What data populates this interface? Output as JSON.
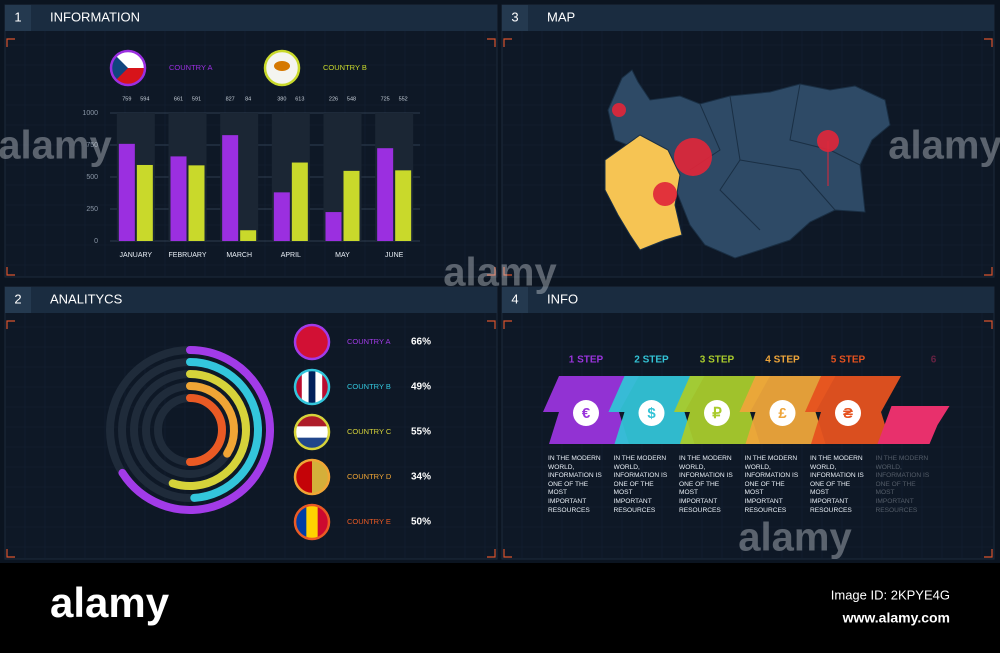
{
  "panels": [
    {
      "number": "1",
      "title": "INFORMATION"
    },
    {
      "number": "3",
      "title": "MAP"
    },
    {
      "number": "2",
      "title": "ANALITYCS"
    },
    {
      "number": "4",
      "title": "INFO"
    }
  ],
  "chart_data": [
    {
      "type": "bar",
      "categories": [
        "JANUARY",
        "FEBRUARY",
        "MARCH",
        "APRIL",
        "MAY",
        "JUNE"
      ],
      "series": [
        {
          "name": "COUNTRY A",
          "color": "#9b2fe0",
          "values": [
            759,
            661,
            827,
            380,
            226,
            725
          ]
        },
        {
          "name": "COUNTRY B",
          "color": "#c9d92b",
          "values": [
            594,
            591,
            84,
            613,
            548,
            552
          ]
        }
      ],
      "ylim": [
        0,
        1000
      ],
      "yticks": [
        0,
        250,
        500,
        750,
        1000
      ],
      "grid": true
    },
    {
      "type": "radial_bar",
      "categories": [
        "COUNTRY A",
        "COUNTRY B",
        "COUNTRY C",
        "COUNTRY D",
        "COUNTRY E"
      ],
      "values": [
        66,
        49,
        55,
        34,
        50
      ],
      "value_labels": [
        "66%",
        "49%",
        "55%",
        "34%",
        "50%"
      ],
      "colors": [
        "#a23be8",
        "#33c6dc",
        "#d6d33a",
        "#f0a535",
        "#ea5a24"
      ],
      "ylim": [
        0,
        100
      ]
    }
  ],
  "steps": [
    {
      "label": "1 STEP",
      "symbol": "€",
      "color": "#9a34dc",
      "text": "IN THE MODERN WORLD, INFORMATION IS ONE OF THE MOST IMPORTANT RESOURCES"
    },
    {
      "label": "2 STEP",
      "symbol": "$",
      "color": "#33c3d6",
      "text": "IN THE MODERN WORLD, INFORMATION IS ONE OF THE MOST IMPORTANT RESOURCES"
    },
    {
      "label": "3 STEP",
      "symbol": "₽",
      "color": "#a9cb2c",
      "text": "IN THE MODERN WORLD, INFORMATION IS ONE OF THE MOST IMPORTANT RESOURCES"
    },
    {
      "label": "4 STEP",
      "symbol": "£",
      "color": "#eea53a",
      "text": "IN THE MODERN WORLD, INFORMATION IS ONE OF THE MOST IMPORTANT RESOURCES"
    },
    {
      "label": "5 STEP",
      "symbol": "₴",
      "color": "#e6521f",
      "text": "IN THE MODERN WORLD, INFORMATION IS ONE OF THE MOST IMPORTANT RESOURCES"
    },
    {
      "label": "6",
      "color": "#e8306c",
      "text": "IN THE MODERN WORLD, INFORMATION IS ONE OF THE MOST IMPORTANT RESOURCES"
    }
  ],
  "footer": {
    "watermark": "alamy",
    "image_id": "Image ID: 2KPYE4G",
    "site": "www.alamy.com"
  }
}
